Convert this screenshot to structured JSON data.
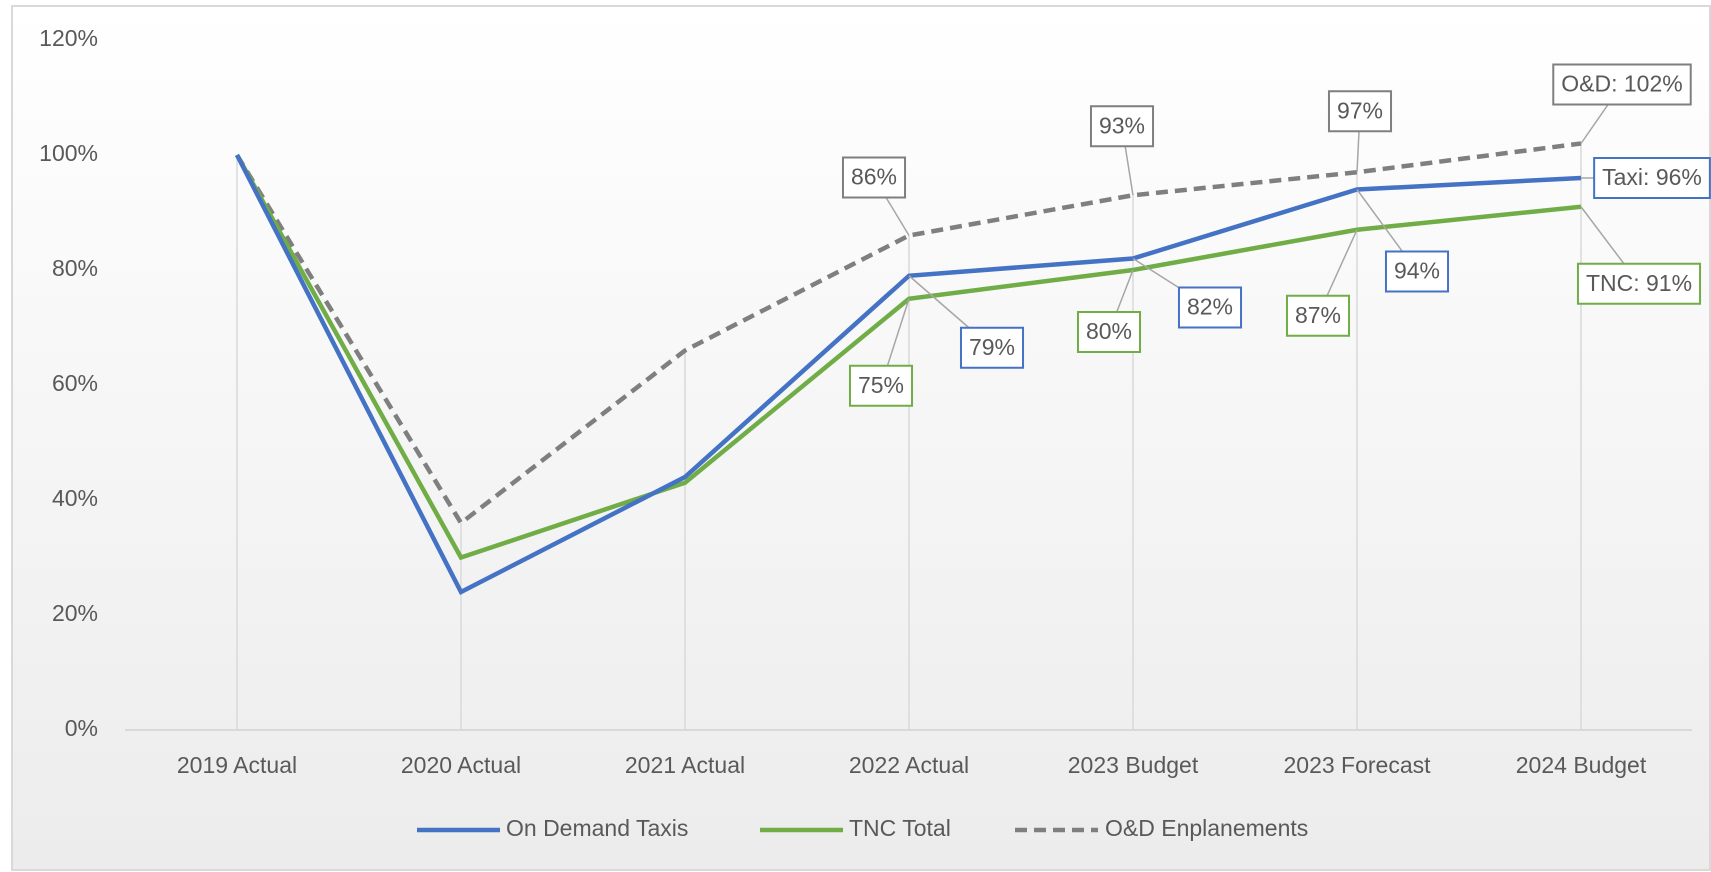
{
  "chart_data": {
    "type": "line",
    "categories": [
      "2019 Actual",
      "2020 Actual",
      "2021 Actual",
      "2022 Actual",
      "2023 Budget",
      "2023 Forecast",
      "2024 Budget"
    ],
    "series": [
      {
        "name": "On Demand Taxis",
        "color": "#4472c4",
        "values": [
          100,
          24,
          44,
          79,
          82,
          94,
          96
        ],
        "value_labels": [
          null,
          null,
          null,
          "79%",
          "82%",
          "94%",
          "Taxi: 96%"
        ]
      },
      {
        "name": "TNC Total",
        "color": "#70ad47",
        "values": [
          100,
          30,
          43,
          75,
          80,
          87,
          91
        ],
        "value_labels": [
          null,
          null,
          null,
          "75%",
          "80%",
          "87%",
          "TNC: 91%"
        ]
      },
      {
        "name": "O&D Enplanements",
        "color": "#7f7f7f",
        "dashed": true,
        "values": [
          100,
          36,
          66,
          86,
          93,
          97,
          102
        ],
        "value_labels": [
          null,
          null,
          null,
          "86%",
          "93%",
          "97%",
          "O&D: 102%"
        ]
      }
    ],
    "ylim": [
      0,
      120
    ],
    "yticks": [
      {
        "value": 0,
        "label": "0%"
      },
      {
        "value": 20,
        "label": "20%"
      },
      {
        "value": 40,
        "label": "40%"
      },
      {
        "value": 60,
        "label": "60%"
      },
      {
        "value": 80,
        "label": "80%"
      },
      {
        "value": 100,
        "label": "100%"
      },
      {
        "value": 120,
        "label": "120%"
      }
    ],
    "legend": "bottom"
  }
}
